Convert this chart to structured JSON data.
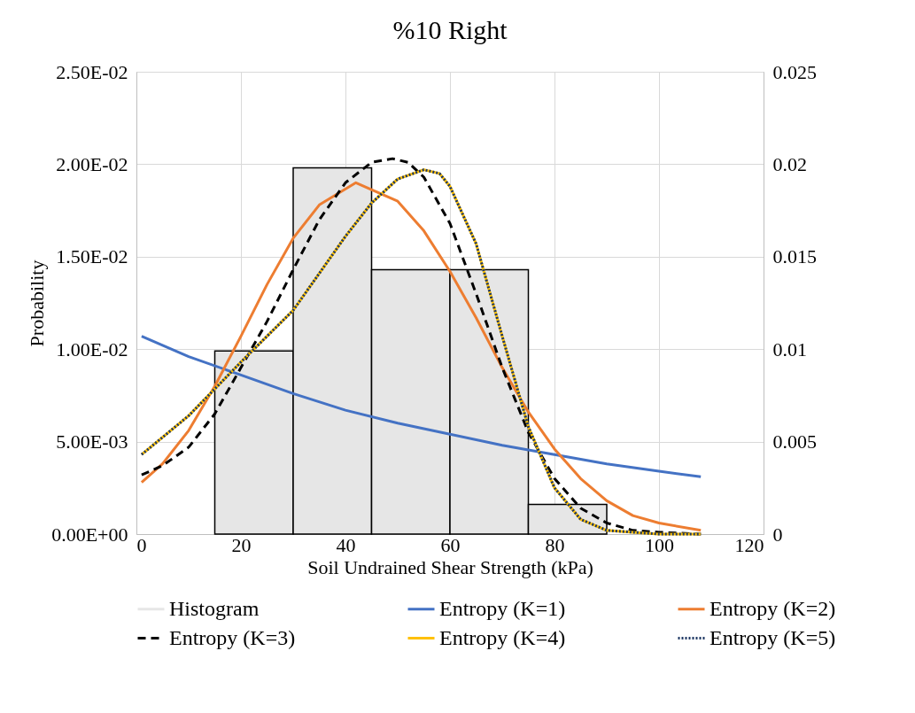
{
  "chart_data": {
    "type": "line",
    "title": "%10 Right",
    "xlabel": "Soil Undrained Shear Strength (kPa)",
    "ylabel": "Probability",
    "xlim": [
      0,
      120
    ],
    "xticks": [
      0,
      20,
      40,
      60,
      80,
      100,
      120
    ],
    "ylim": [
      0,
      0.025
    ],
    "yticks": [
      {
        "value": 0,
        "label": "0.00E+00"
      },
      {
        "value": 0.005,
        "label": "5.00E-03"
      },
      {
        "value": 0.01,
        "label": "1.00E-02"
      },
      {
        "value": 0.015,
        "label": "1.50E-02"
      },
      {
        "value": 0.02,
        "label": "2.00E-02"
      },
      {
        "value": 0.025,
        "label": "2.50E-02"
      }
    ],
    "y2lim": [
      0,
      0.025
    ],
    "y2ticks": [
      0,
      0.005,
      0.01,
      0.015,
      0.02,
      0.025
    ],
    "grid": true,
    "legend": "bottom",
    "series": [
      {
        "name": "Histogram",
        "type": "histogram",
        "color": "#e6e6e6",
        "bins": [
          15,
          30,
          45,
          60,
          75,
          90
        ],
        "values": [
          0.0099,
          0.0198,
          0.0143,
          0.0143,
          0.0016
        ]
      },
      {
        "name": "Entropy (K=1)",
        "type": "line",
        "axis": "y2",
        "color": "#4472c4",
        "line_style": "solid",
        "x": [
          1,
          10,
          20,
          30,
          40,
          50,
          60,
          70,
          80,
          90,
          100,
          108
        ],
        "values": [
          0.0107,
          0.0096,
          0.0086,
          0.0076,
          0.0067,
          0.006,
          0.0054,
          0.0048,
          0.0043,
          0.0038,
          0.0034,
          0.0031
        ]
      },
      {
        "name": "Entropy (K=2)",
        "type": "line",
        "axis": "y2",
        "color": "#ed7d31",
        "line_style": "solid",
        "x": [
          1,
          5,
          10,
          15,
          20,
          25,
          30,
          35,
          42,
          50,
          55,
          60,
          65,
          70,
          75,
          80,
          85,
          90,
          95,
          100,
          108
        ],
        "values": [
          0.0028,
          0.0038,
          0.0056,
          0.008,
          0.0107,
          0.0135,
          0.016,
          0.0178,
          0.019,
          0.018,
          0.0164,
          0.0142,
          0.0117,
          0.009,
          0.0066,
          0.0046,
          0.003,
          0.0018,
          0.001,
          0.0006,
          0.0002
        ]
      },
      {
        "name": "Entropy (K=3)",
        "type": "line",
        "axis": "y2",
        "color": "#000000",
        "line_style": "dashed",
        "x": [
          1,
          5,
          10,
          15,
          20,
          25,
          30,
          35,
          40,
          45,
          49,
          52,
          55,
          60,
          65,
          70,
          75,
          80,
          85,
          90,
          95,
          100,
          108
        ],
        "values": [
          0.0032,
          0.0037,
          0.0047,
          0.0065,
          0.009,
          0.0115,
          0.0143,
          0.017,
          0.019,
          0.0201,
          0.0203,
          0.0201,
          0.0193,
          0.0168,
          0.013,
          0.009,
          0.0055,
          0.003,
          0.0014,
          0.0006,
          0.0002,
          0.0001,
          0
        ]
      },
      {
        "name": "Entropy (K=4)",
        "type": "line",
        "axis": "y2",
        "color": "#ffc000",
        "line_style": "solid",
        "x": [
          1,
          10,
          20,
          30,
          35,
          40,
          45,
          50,
          55,
          58,
          60,
          65,
          70,
          75,
          80,
          85,
          90,
          95,
          100,
          108
        ],
        "values": [
          0.0043,
          0.0064,
          0.0093,
          0.0121,
          0.0141,
          0.0161,
          0.0179,
          0.0192,
          0.0197,
          0.0195,
          0.0188,
          0.0157,
          0.0107,
          0.0058,
          0.0025,
          0.0008,
          0.0002,
          0.0001,
          0,
          0
        ]
      },
      {
        "name": "Entropy (K=5)",
        "type": "line",
        "axis": "y2",
        "color": "#1f3864",
        "line_style": "dotted",
        "x": [
          1,
          10,
          20,
          30,
          35,
          40,
          45,
          50,
          55,
          58,
          60,
          65,
          70,
          75,
          80,
          85,
          90,
          95,
          100,
          108
        ],
        "values": [
          0.0043,
          0.0064,
          0.0093,
          0.0121,
          0.0141,
          0.0161,
          0.0179,
          0.0192,
          0.0197,
          0.0195,
          0.0188,
          0.0157,
          0.0107,
          0.0058,
          0.0025,
          0.0008,
          0.0002,
          0.0001,
          0,
          0
        ]
      }
    ]
  }
}
